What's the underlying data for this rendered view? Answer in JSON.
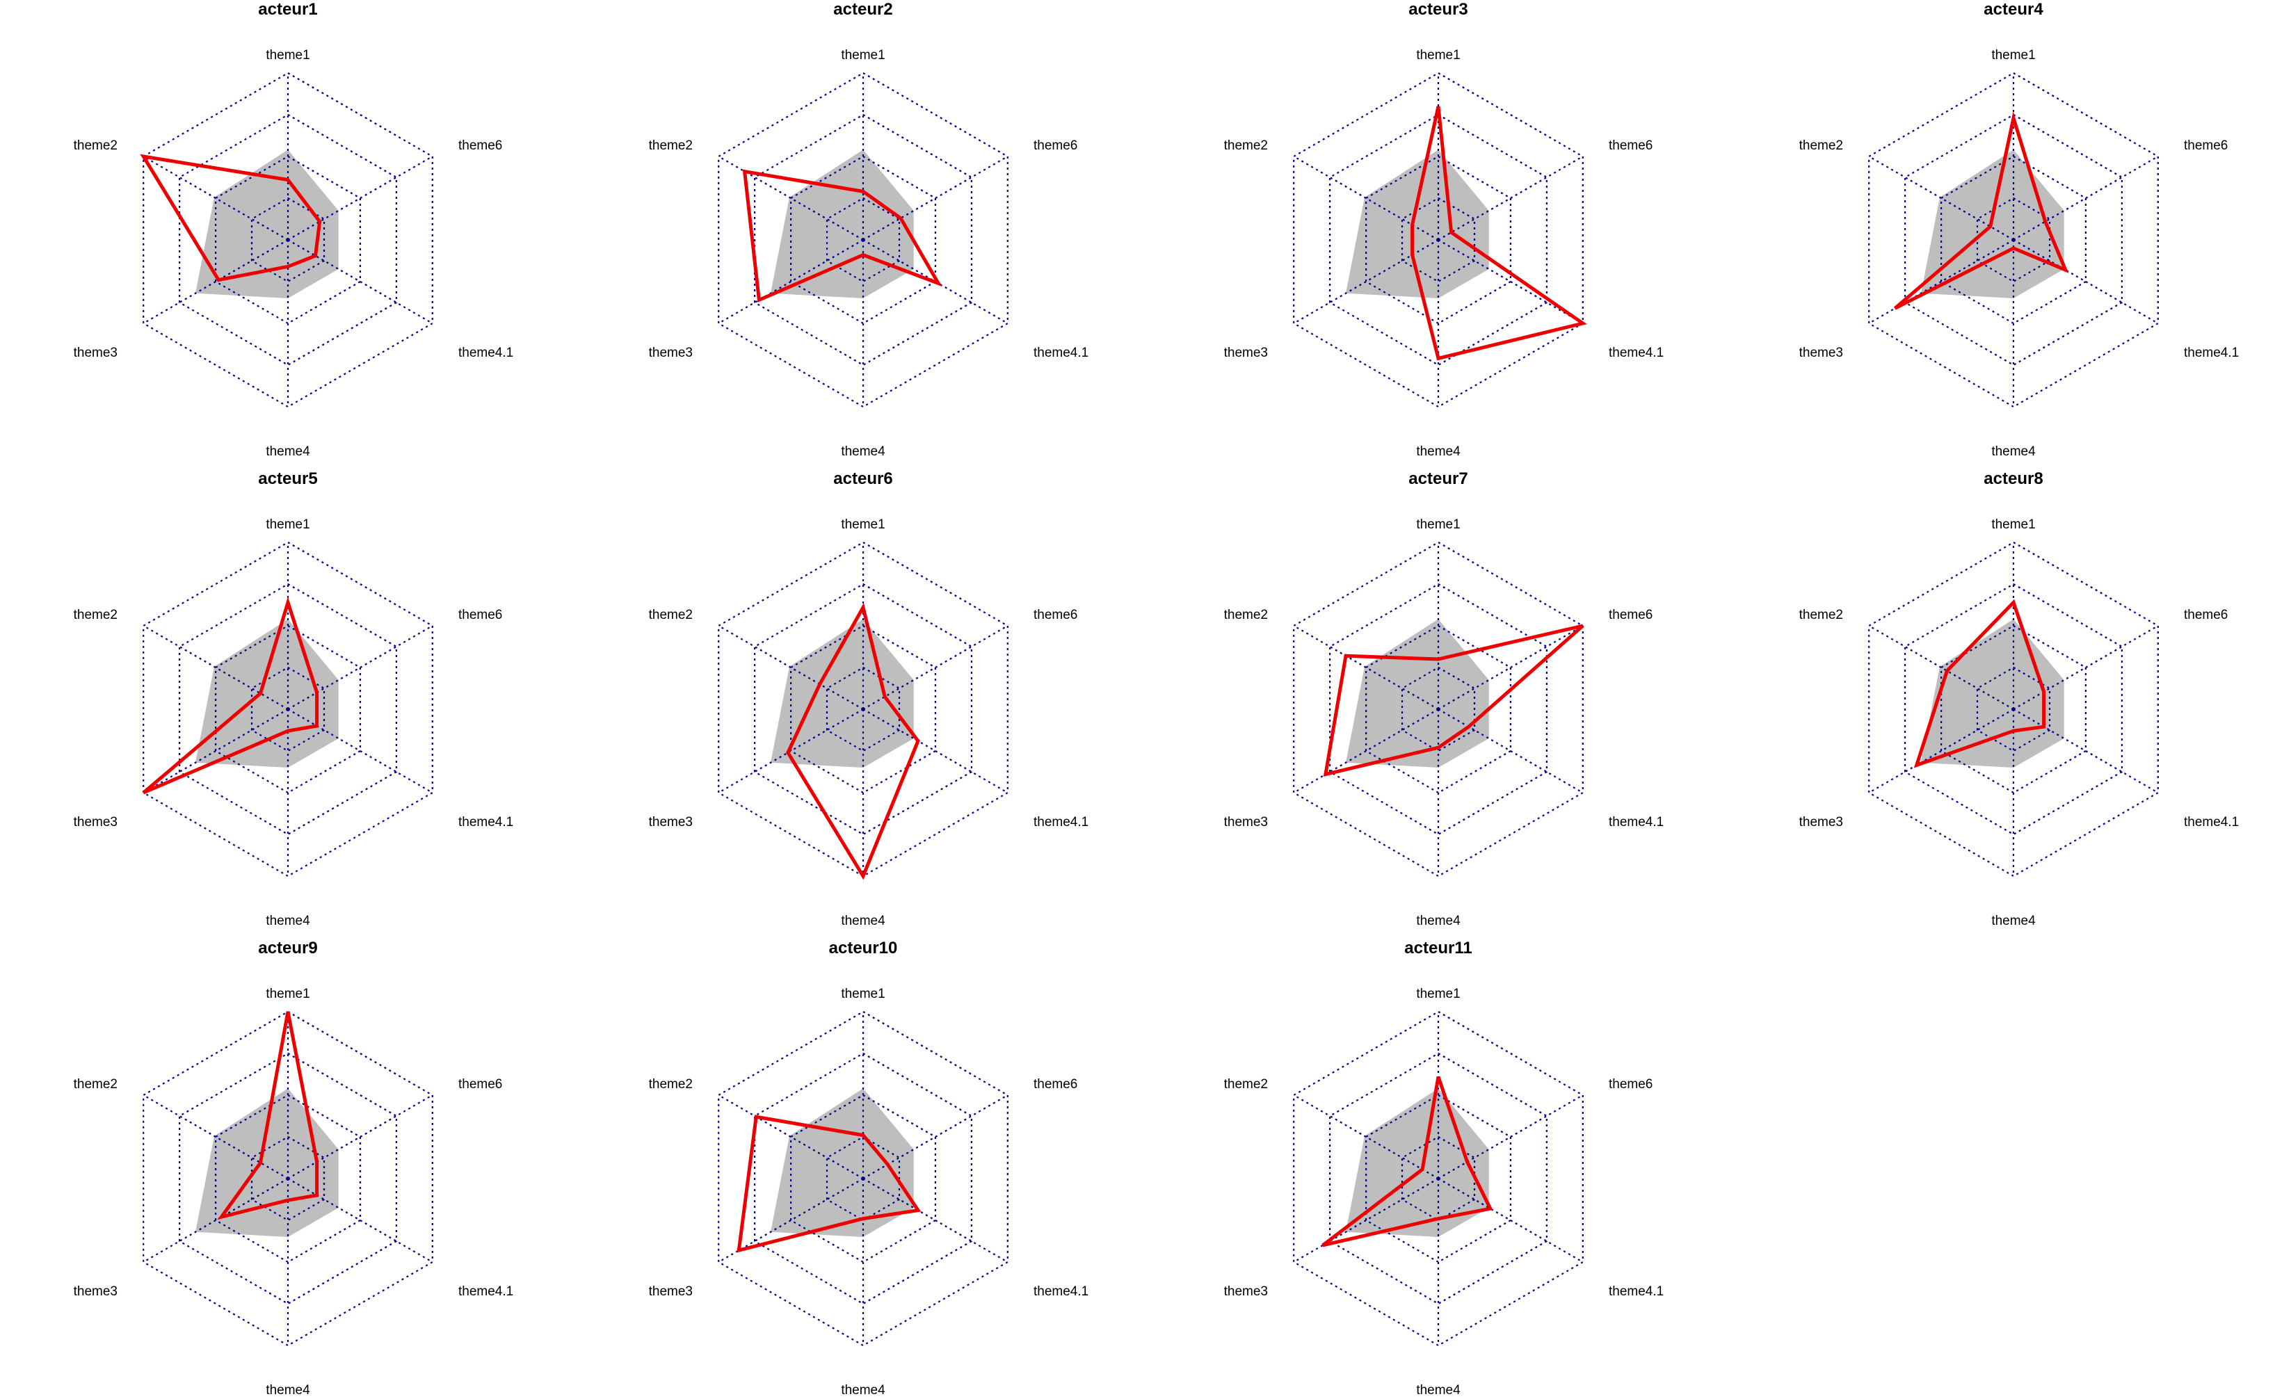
{
  "chart_data": {
    "type": "radar",
    "axes": [
      "theme1",
      "theme6",
      "theme4.1",
      "theme4",
      "theme3",
      "theme2"
    ],
    "range": [
      0,
      1
    ],
    "grid_levels": 4,
    "colors": {
      "grid": "#00008b",
      "average_fill": "#bebebe",
      "profile_line": "#ee0000"
    },
    "average_profile": [
      0.54,
      0.35,
      0.35,
      0.35,
      0.64,
      0.51
    ],
    "panels": [
      {
        "title": "acteur1",
        "values": [
          0.36,
          0.22,
          0.19,
          0.16,
          0.48,
          1.0
        ]
      },
      {
        "title": "acteur2",
        "values": [
          0.29,
          0.26,
          0.52,
          0.09,
          0.72,
          0.82
        ]
      },
      {
        "title": "acteur3",
        "values": [
          0.8,
          0.09,
          1.0,
          0.71,
          0.18,
          0.18
        ]
      },
      {
        "title": "acteur4",
        "values": [
          0.73,
          0.22,
          0.36,
          0.05,
          0.82,
          0.16
        ]
      },
      {
        "title": "acteur5",
        "values": [
          0.64,
          0.2,
          0.2,
          0.13,
          1.0,
          0.19
        ]
      },
      {
        "title": "acteur6",
        "values": [
          0.61,
          0.15,
          0.38,
          1.0,
          0.52,
          0.3
        ]
      },
      {
        "title": "acteur7",
        "values": [
          0.3,
          1.0,
          0.21,
          0.23,
          0.78,
          0.64
        ]
      },
      {
        "title": "acteur8",
        "values": [
          0.64,
          0.21,
          0.21,
          0.13,
          0.67,
          0.46
        ]
      },
      {
        "title": "acteur9",
        "values": [
          1.0,
          0.2,
          0.2,
          0.13,
          0.46,
          0.19
        ]
      },
      {
        "title": "acteur10",
        "values": [
          0.26,
          0.17,
          0.38,
          0.24,
          0.86,
          0.74
        ]
      },
      {
        "title": "acteur11",
        "values": [
          0.61,
          0.2,
          0.36,
          0.24,
          0.8,
          0.11
        ]
      }
    ]
  }
}
